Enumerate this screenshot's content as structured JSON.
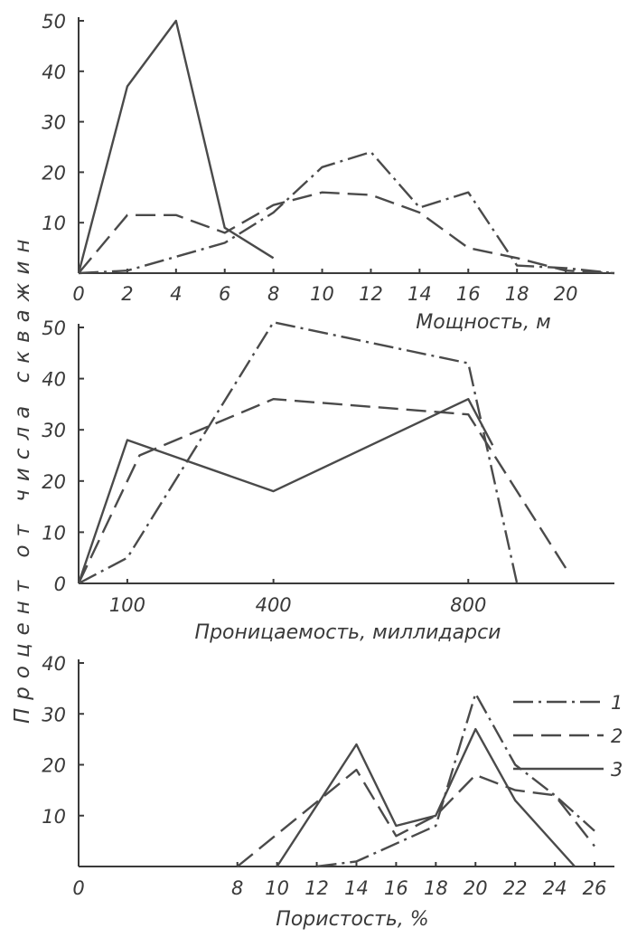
{
  "ylabel": "Процент от числа скважин",
  "legend": [
    {
      "label": "1",
      "style": "dashdot"
    },
    {
      "label": "2",
      "style": "dashed"
    },
    {
      "label": "3",
      "style": "solid"
    }
  ],
  "chart_data": [
    {
      "type": "line",
      "xlabel": "Мощность, м",
      "xlim": [
        0,
        22
      ],
      "ylim": [
        0,
        50
      ],
      "x_ticks": [
        "0",
        "2",
        "4",
        "6",
        "8",
        "10",
        "12",
        "14",
        "16",
        "18",
        "20"
      ],
      "x_tick_values": [
        0,
        2,
        4,
        6,
        8,
        10,
        12,
        14,
        16,
        18,
        20
      ],
      "y_ticks": [
        "10",
        "20",
        "30",
        "40",
        "50"
      ],
      "y_tick_values": [
        10,
        20,
        30,
        40,
        50
      ],
      "series": [
        {
          "style": "dashdot",
          "points": [
            [
              0,
              0
            ],
            [
              2,
              0.5
            ],
            [
              6,
              6
            ],
            [
              8,
              12
            ],
            [
              10,
              21
            ],
            [
              12,
              24
            ],
            [
              14,
              13
            ],
            [
              16,
              16
            ],
            [
              18,
              1.5
            ],
            [
              20,
              1
            ],
            [
              22,
              0
            ]
          ]
        },
        {
          "style": "dashed",
          "points": [
            [
              0,
              0
            ],
            [
              2,
              11.5
            ],
            [
              4,
              11.5
            ],
            [
              6,
              8
            ],
            [
              8,
              13.5
            ],
            [
              10,
              16
            ],
            [
              12,
              15.5
            ],
            [
              14,
              12
            ],
            [
              16,
              5
            ],
            [
              18,
              3
            ],
            [
              20,
              0.5
            ],
            [
              22,
              0
            ]
          ]
        },
        {
          "style": "solid",
          "points": [
            [
              0,
              0
            ],
            [
              2,
              37
            ],
            [
              4,
              50
            ],
            [
              6,
              9
            ],
            [
              8,
              3
            ]
          ]
        }
      ]
    },
    {
      "type": "line",
      "xlabel": "Проницаемость, миллидарси",
      "xlim": [
        0,
        1100
      ],
      "ylim": [
        0,
        50
      ],
      "x_ticks": [
        "100",
        "400",
        "800"
      ],
      "x_tick_values": [
        100,
        400,
        800
      ],
      "y_ticks": [
        "0",
        "10",
        "20",
        "30",
        "40",
        "50"
      ],
      "y_tick_values": [
        0,
        10,
        20,
        30,
        40,
        50
      ],
      "series": [
        {
          "style": "dashdot",
          "points": [
            [
              0,
              0
            ],
            [
              100,
              5
            ],
            [
              400,
              51
            ],
            [
              800,
              43
            ],
            [
              900,
              0
            ]
          ]
        },
        {
          "style": "dashed",
          "points": [
            [
              0,
              0
            ],
            [
              125,
              25
            ],
            [
              400,
              36
            ],
            [
              800,
              33
            ],
            [
              1000,
              3
            ]
          ]
        },
        {
          "style": "solid",
          "points": [
            [
              0,
              0
            ],
            [
              100,
              28
            ],
            [
              400,
              18
            ],
            [
              800,
              36
            ],
            [
              850,
              27
            ]
          ]
        }
      ]
    },
    {
      "type": "line",
      "xlabel": "Пористость, %",
      "xlim": [
        0,
        27
      ],
      "ylim": [
        0,
        40
      ],
      "x_ticks": [
        "0",
        "8",
        "10",
        "12",
        "14",
        "16",
        "18",
        "20",
        "22",
        "24",
        "26"
      ],
      "x_tick_values": [
        0,
        8,
        10,
        12,
        14,
        16,
        18,
        20,
        22,
        24,
        26
      ],
      "y_ticks": [
        "10",
        "20",
        "30",
        "40"
      ],
      "y_tick_values": [
        10,
        20,
        30,
        40
      ],
      "series": [
        {
          "style": "dashdot",
          "points": [
            [
              12,
              0
            ],
            [
              14,
              1
            ],
            [
              18,
              8
            ],
            [
              20,
              34
            ],
            [
              22,
              20
            ],
            [
              24,
              14
            ],
            [
              26,
              7
            ]
          ]
        },
        {
          "style": "dashed",
          "points": [
            [
              8,
              0
            ],
            [
              14,
              19
            ],
            [
              16,
              6
            ],
            [
              18,
              10
            ],
            [
              20,
              18
            ],
            [
              22,
              15
            ],
            [
              24,
              14
            ],
            [
              26,
              4
            ]
          ]
        },
        {
          "style": "solid",
          "points": [
            [
              10,
              0
            ],
            [
              14,
              24
            ],
            [
              16,
              8
            ],
            [
              18,
              10
            ],
            [
              20,
              27
            ],
            [
              22,
              13
            ],
            [
              25,
              0
            ]
          ]
        }
      ]
    }
  ]
}
